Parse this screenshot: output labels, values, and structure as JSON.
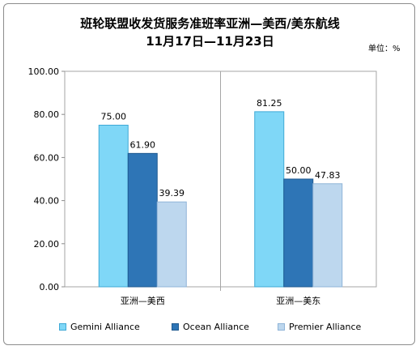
{
  "chart_data": {
    "type": "bar",
    "title": "班轮联盟收发货服务准班率亚洲—美西/美东航线",
    "subtitle": "11月17日—11月23日",
    "unit_label": "单位：%",
    "categories": [
      "亚洲—美西",
      "亚洲—美东"
    ],
    "series": [
      {
        "name": "Gemini Alliance",
        "values": [
          75.0,
          81.25
        ],
        "color": "#7FD7F7",
        "border": "#3fa9d6"
      },
      {
        "name": "Ocean Alliance",
        "values": [
          61.9,
          50.0
        ],
        "color": "#2E75B6",
        "border": "#1f5a90"
      },
      {
        "name": "Premier Alliance",
        "values": [
          39.39,
          47.83
        ],
        "color": "#BDD7EE",
        "border": "#8fb4d8"
      }
    ],
    "ylim": [
      0,
      100
    ],
    "yticks": [
      "0.00",
      "20.00",
      "40.00",
      "60.00",
      "80.00",
      "100.00"
    ],
    "data_labels": [
      [
        "75.00",
        "81.25"
      ],
      [
        "61.90",
        "50.00"
      ],
      [
        "39.39",
        "47.83"
      ]
    ],
    "grid": false,
    "legend": "bottom"
  }
}
